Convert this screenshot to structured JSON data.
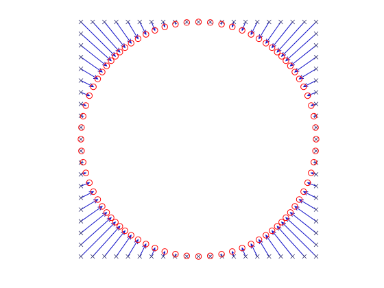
{
  "chart_data": {
    "type": "quiver",
    "xlim": [
      -1,
      1
    ],
    "ylim": [
      -1,
      1
    ],
    "arrow_color": "#1010c8",
    "series": [
      {
        "marker": "x",
        "color": "#303070",
        "x": [
          -1,
          -0.9,
          -0.8,
          -0.7,
          -0.6,
          -0.5,
          -0.4,
          -0.3,
          -0.2,
          -0.1,
          0,
          0.1,
          0.2,
          0.3,
          0.4,
          0.5,
          0.6,
          0.7,
          0.8,
          0.9,
          1,
          1,
          1,
          1,
          1,
          1,
          1,
          1,
          1,
          1,
          1,
          1,
          1,
          1,
          1,
          1,
          1,
          1,
          1,
          1,
          1,
          0.9,
          0.8,
          0.7,
          0.6,
          0.5,
          0.4,
          0.3,
          0.2,
          0.1,
          0,
          -0.1,
          -0.2,
          -0.3,
          -0.4,
          -0.5,
          -0.6,
          -0.7,
          -0.8,
          -0.9,
          -1,
          -1,
          -1,
          -1,
          -1,
          -1,
          -1,
          -1,
          -1,
          -1,
          -1,
          -1,
          -1,
          -1,
          -1,
          -1,
          -1,
          -1,
          -1,
          -1
        ],
        "y": [
          1,
          1,
          1,
          1,
          1,
          1,
          1,
          1,
          1,
          1,
          1,
          1,
          1,
          1,
          1,
          1,
          1,
          1,
          1,
          1,
          1,
          0.9,
          0.8,
          0.7,
          0.6,
          0.5,
          0.4,
          0.3,
          0.2,
          0.1,
          0,
          -0.1,
          -0.2,
          -0.3,
          -0.4,
          -0.5,
          -0.6,
          -0.7,
          -0.8,
          -0.9,
          -1,
          -1,
          -1,
          -1,
          -1,
          -1,
          -1,
          -1,
          -1,
          -1,
          -1,
          -1,
          -1,
          -1,
          -1,
          -1,
          -1,
          -1,
          -1,
          -1,
          -1,
          -0.9,
          -0.8,
          -0.7,
          -0.6,
          -0.5,
          -0.4,
          -0.3,
          -0.2,
          -0.1,
          0,
          0.1,
          0.2,
          0.3,
          0.4,
          0.5,
          0.6,
          0.7,
          0.8,
          0.9
        ]
      },
      {
        "marker": "o",
        "color": "#ff0000",
        "x": [
          -0.707,
          -0.669,
          -0.625,
          -0.573,
          -0.514,
          -0.447,
          -0.371,
          -0.287,
          -0.196,
          -0.1,
          0,
          0.1,
          0.196,
          0.287,
          0.371,
          0.447,
          0.514,
          0.573,
          0.625,
          0.669,
          0.707,
          0.743,
          0.781,
          0.819,
          0.857,
          0.894,
          0.928,
          0.958,
          0.981,
          0.995,
          1,
          0.995,
          0.981,
          0.958,
          0.928,
          0.894,
          0.857,
          0.819,
          0.781,
          0.743,
          0.707,
          0.669,
          0.625,
          0.573,
          0.514,
          0.447,
          0.371,
          0.287,
          0.196,
          0.1,
          0,
          -0.1,
          -0.196,
          -0.287,
          -0.371,
          -0.447,
          -0.514,
          -0.573,
          -0.625,
          -0.669,
          -0.707,
          -0.743,
          -0.781,
          -0.819,
          -0.857,
          -0.894,
          -0.928,
          -0.958,
          -0.981,
          -0.995,
          -1,
          -0.995,
          -0.981,
          -0.958,
          -0.928,
          -0.894,
          -0.857,
          -0.819,
          -0.781,
          -0.743
        ],
        "y": [
          0.707,
          0.743,
          0.781,
          0.819,
          0.857,
          0.894,
          0.928,
          0.958,
          0.981,
          0.995,
          1,
          0.995,
          0.981,
          0.958,
          0.928,
          0.894,
          0.857,
          0.819,
          0.781,
          0.743,
          0.707,
          0.669,
          0.625,
          0.573,
          0.514,
          0.447,
          0.371,
          0.287,
          0.196,
          0.1,
          0,
          -0.1,
          -0.196,
          -0.287,
          -0.371,
          -0.447,
          -0.514,
          -0.573,
          -0.625,
          -0.669,
          -0.707,
          -0.743,
          -0.781,
          -0.819,
          -0.857,
          -0.894,
          -0.928,
          -0.958,
          -0.981,
          -0.995,
          -1,
          -0.995,
          -0.981,
          -0.958,
          -0.928,
          -0.894,
          -0.857,
          -0.819,
          -0.781,
          -0.743,
          -0.707,
          -0.669,
          -0.625,
          -0.573,
          -0.514,
          -0.447,
          -0.371,
          -0.287,
          -0.196,
          -0.1,
          0,
          0.1,
          0.196,
          0.287,
          0.371,
          0.447,
          0.514,
          0.573,
          0.625,
          0.669
        ]
      }
    ]
  }
}
